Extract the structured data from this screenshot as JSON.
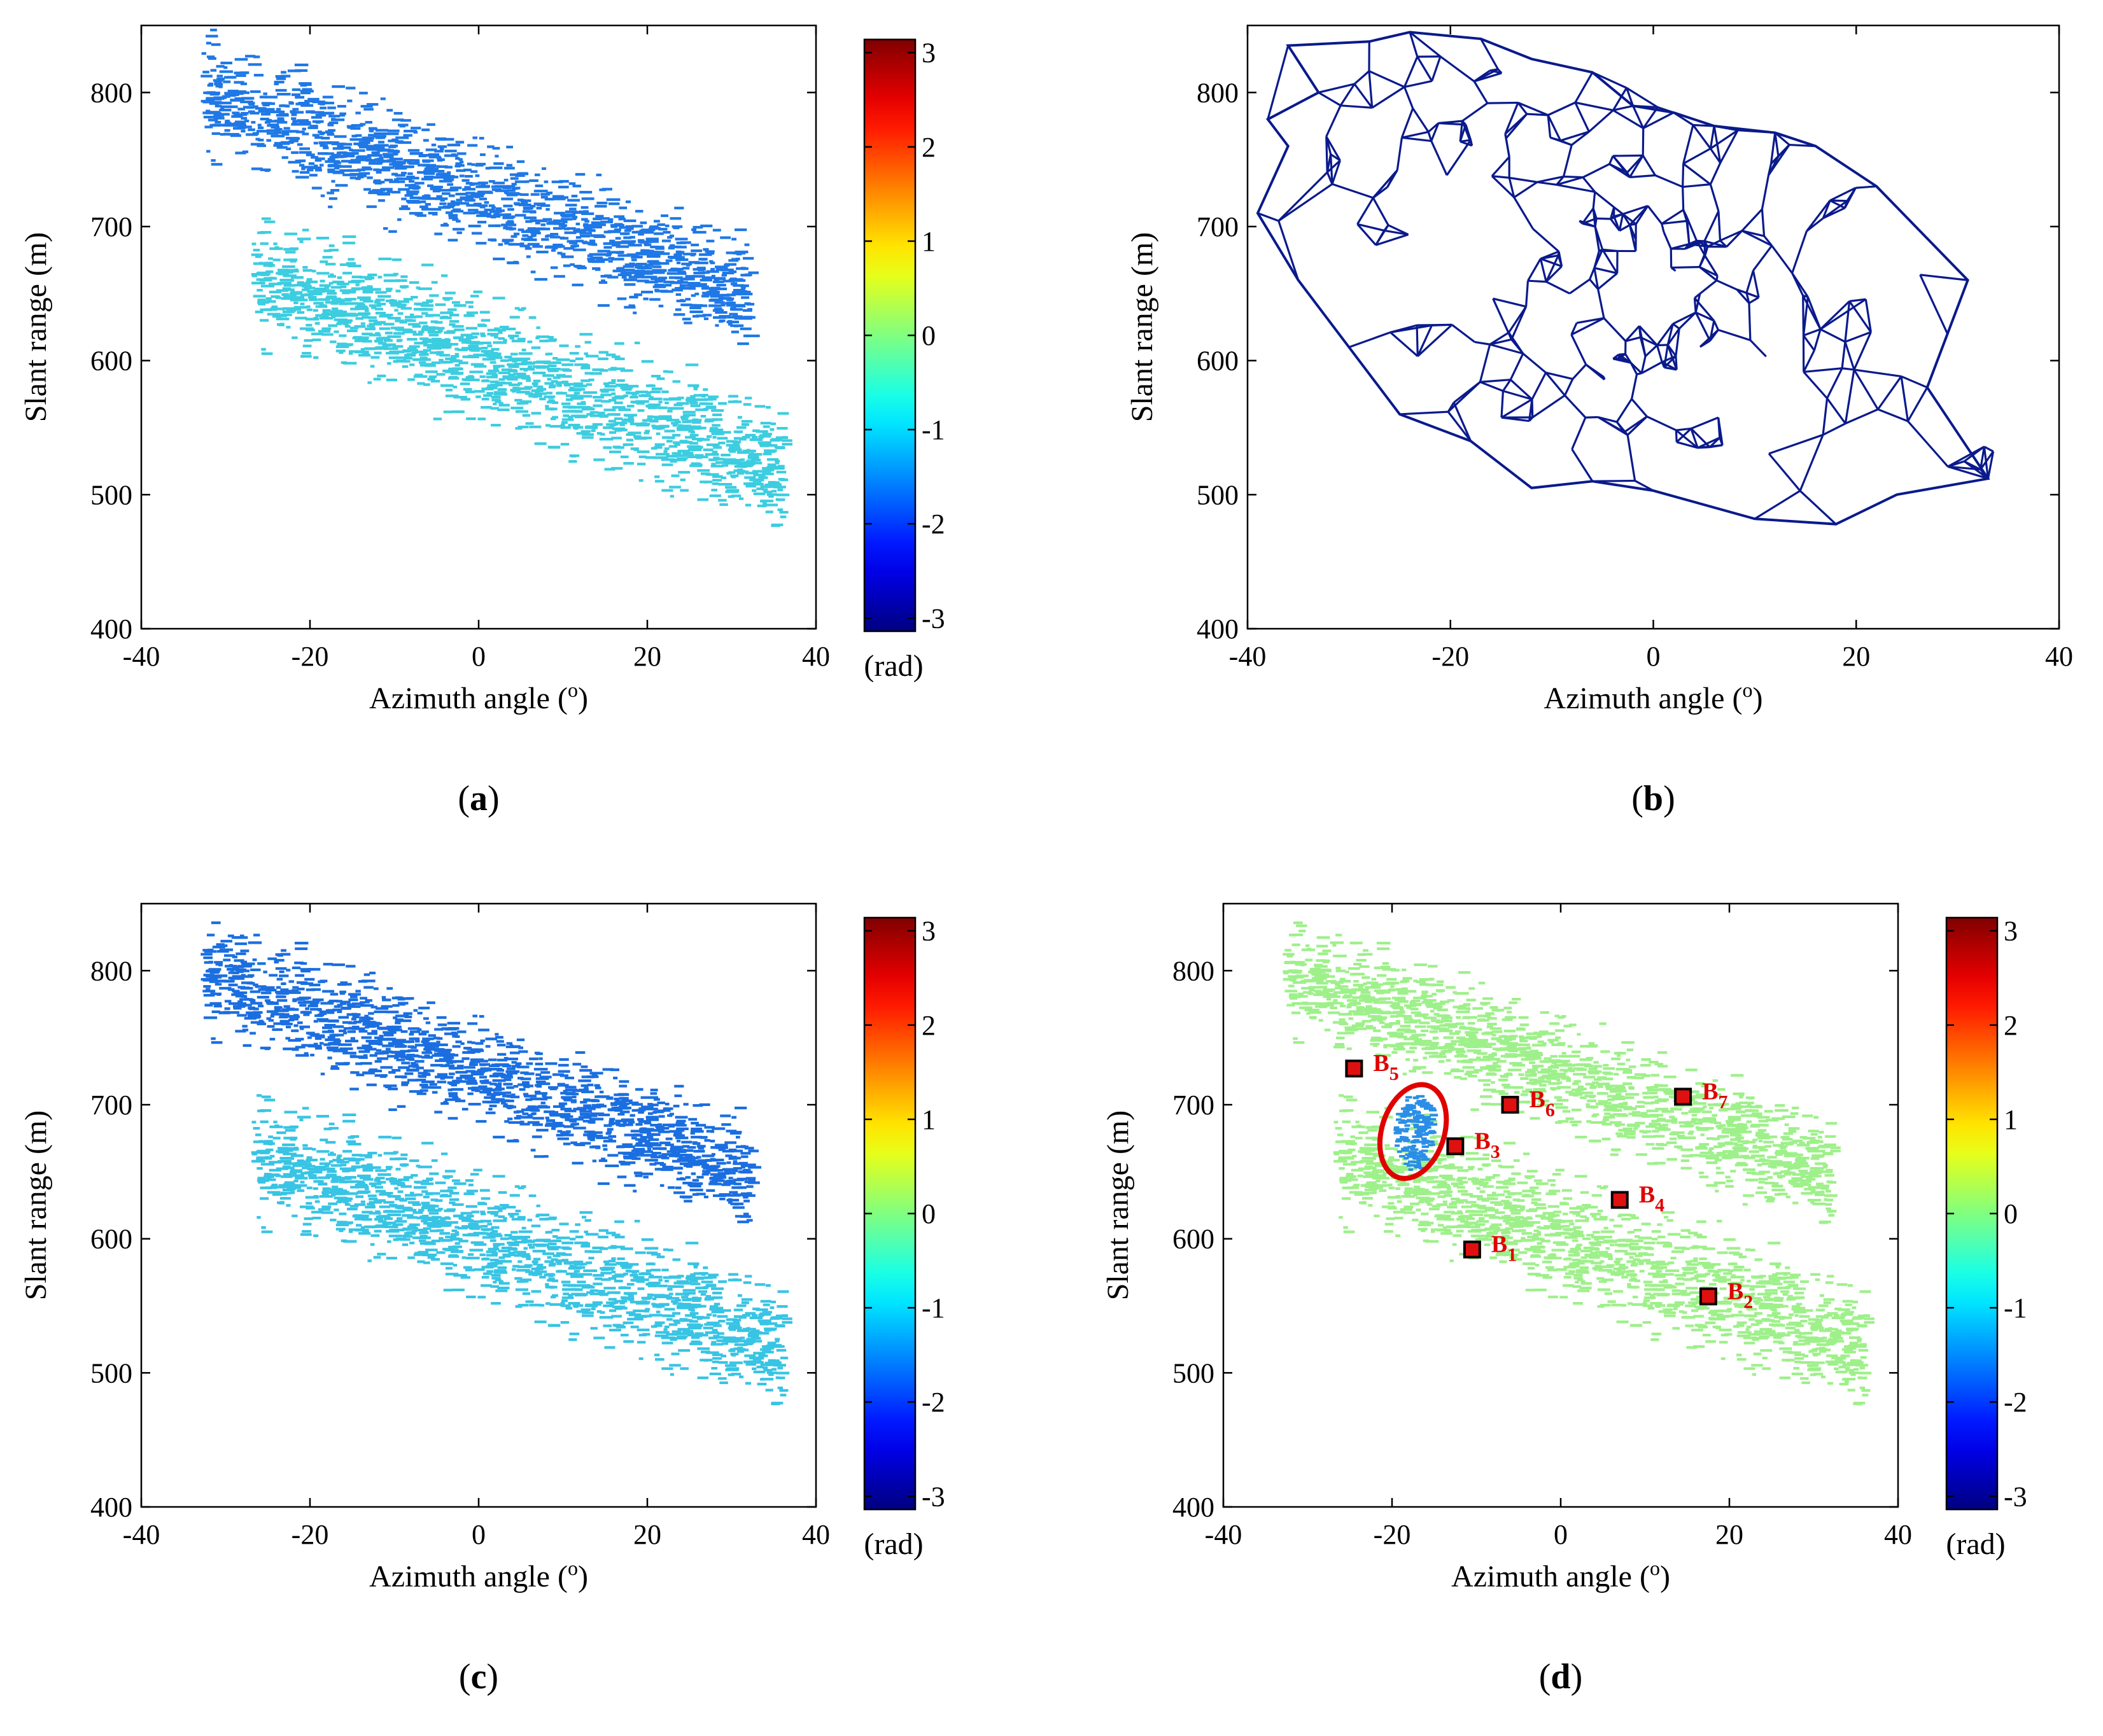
{
  "figure": {
    "panel_labels": [
      "a",
      "b",
      "c",
      "d"
    ]
  },
  "chart_data": [
    {
      "id": "a",
      "type": "heatmap",
      "panel_label": "a",
      "xlabel": "Azimuth angle (",
      "xlabel_sup": "o",
      "xlabel_close": ")",
      "ylabel": "Slant range (m)",
      "xlim": [
        -40,
        40
      ],
      "ylim": [
        400,
        850
      ],
      "xticks": [
        -40,
        -20,
        0,
        20,
        40
      ],
      "yticks": [
        400,
        500,
        600,
        700,
        800
      ],
      "colorbar": {
        "min": -3.14,
        "max": 3.14,
        "ticks": [
          -3,
          -2,
          -1,
          0,
          1,
          2,
          3
        ],
        "unit": "(rad)"
      },
      "colors": {
        "upper_band": "#1f78e6",
        "lower_band": "#3ccde0"
      },
      "bands": [
        {
          "name": "upper",
          "value": -2.0,
          "from_azimuth": -33,
          "to_azimuth": 32,
          "center_start": 800,
          "center_end": 650,
          "half_width": 55
        },
        {
          "name": "lower",
          "value": -1.0,
          "from_azimuth": -27,
          "to_azimuth": 36,
          "center_start": 665,
          "center_end": 520,
          "half_width": 62
        }
      ]
    },
    {
      "id": "b",
      "type": "scatter",
      "panel_label": "b",
      "xlabel": "Azimuth angle (",
      "xlabel_sup": "o",
      "xlabel_close": ")",
      "ylabel": "Slant range (m)",
      "xlim": [
        -40,
        40
      ],
      "ylim": [
        400,
        850
      ],
      "xticks": [
        -40,
        -20,
        0,
        20,
        40
      ],
      "yticks": [
        400,
        500,
        600,
        700,
        800
      ],
      "mesh_color": "#0a1a8c",
      "hole_center": [
        -19,
        690
      ],
      "hole_radius": 5,
      "boundary": [
        [
          -36,
          835
        ],
        [
          -28,
          838
        ],
        [
          -24,
          845
        ],
        [
          -17,
          840
        ],
        [
          -12,
          825
        ],
        [
          -6,
          815
        ],
        [
          -2,
          790
        ],
        [
          2,
          785
        ],
        [
          6,
          775
        ],
        [
          12,
          770
        ],
        [
          16,
          760
        ],
        [
          22,
          730
        ],
        [
          31,
          660
        ],
        [
          29,
          620
        ],
        [
          27,
          580
        ],
        [
          33,
          512
        ],
        [
          24,
          500
        ],
        [
          18,
          478
        ],
        [
          10,
          482
        ],
        [
          0,
          503
        ],
        [
          -6,
          510
        ],
        [
          -12,
          505
        ],
        [
          -18,
          540
        ],
        [
          -25,
          560
        ],
        [
          -30,
          610
        ],
        [
          -35,
          660
        ],
        [
          -39,
          710
        ],
        [
          -36,
          760
        ],
        [
          -38,
          780
        ],
        [
          -33,
          800
        ]
      ]
    },
    {
      "id": "c",
      "type": "heatmap",
      "panel_label": "c",
      "xlabel": "Azimuth angle (",
      "xlabel_sup": "o",
      "xlabel_close": ")",
      "ylabel": "Slant range (m)",
      "xlim": [
        -40,
        40
      ],
      "ylim": [
        400,
        850
      ],
      "xticks": [
        -40,
        -20,
        0,
        20,
        40
      ],
      "yticks": [
        400,
        500,
        600,
        700,
        800
      ],
      "colorbar": {
        "min": -3.14,
        "max": 3.14,
        "ticks": [
          -3,
          -2,
          -1,
          0,
          1,
          2,
          3
        ],
        "unit": "(rad)"
      },
      "colors": {
        "upper_band": "#1a6ee0",
        "lower_band": "#38c4e4"
      },
      "bands": [
        {
          "name": "upper",
          "value": -2.1,
          "from_azimuth": -33,
          "to_azimuth": 32,
          "center_start": 800,
          "center_end": 650,
          "half_width": 55
        },
        {
          "name": "lower",
          "value": -1.1,
          "from_azimuth": -27,
          "to_azimuth": 36,
          "center_start": 665,
          "center_end": 520,
          "half_width": 62
        }
      ]
    },
    {
      "id": "d",
      "type": "heatmap",
      "panel_label": "d",
      "xlabel": "Azimuth angle (",
      "xlabel_sup": "o",
      "xlabel_close": ")",
      "ylabel": "Slant range (m)",
      "xlim": [
        -40,
        40
      ],
      "ylim": [
        400,
        850
      ],
      "xticks": [
        -40,
        -20,
        0,
        20,
        40
      ],
      "yticks": [
        400,
        500,
        600,
        700,
        800
      ],
      "colorbar": {
        "min": -3.14,
        "max": 3.14,
        "ticks": [
          -3,
          -2,
          -1,
          0,
          1,
          2,
          3
        ],
        "unit": "(rad)"
      },
      "colors": {
        "upper_band": "#9ef08a",
        "lower_band": "#9ef08a",
        "anomaly": "#2a8ee8",
        "ellipse": "#e00000",
        "marker_fill": "#e01010"
      },
      "bands": [
        {
          "name": "upper",
          "value": 0.0,
          "from_azimuth": -33,
          "to_azimuth": 32,
          "center_start": 800,
          "center_end": 650,
          "half_width": 55
        },
        {
          "name": "lower",
          "value": 0.0,
          "from_azimuth": -27,
          "to_azimuth": 36,
          "center_start": 665,
          "center_end": 520,
          "half_width": 62
        }
      ],
      "anomaly_ellipse": {
        "center": [
          -17.5,
          680
        ],
        "rx_deg": 3.7,
        "ry_m": 36,
        "rotation": 18
      },
      "markers": [
        {
          "name": "B",
          "sub": "1",
          "azimuth": -10.5,
          "range": 592
        },
        {
          "name": "B",
          "sub": "2",
          "azimuth": 17.5,
          "range": 557
        },
        {
          "name": "B",
          "sub": "3",
          "azimuth": -12.5,
          "range": 669
        },
        {
          "name": "B",
          "sub": "4",
          "azimuth": 7,
          "range": 629
        },
        {
          "name": "B",
          "sub": "5",
          "azimuth": -24.5,
          "range": 727
        },
        {
          "name": "B",
          "sub": "6",
          "azimuth": -6,
          "range": 700
        },
        {
          "name": "B",
          "sub": "7",
          "azimuth": 14.5,
          "range": 706
        }
      ]
    }
  ]
}
